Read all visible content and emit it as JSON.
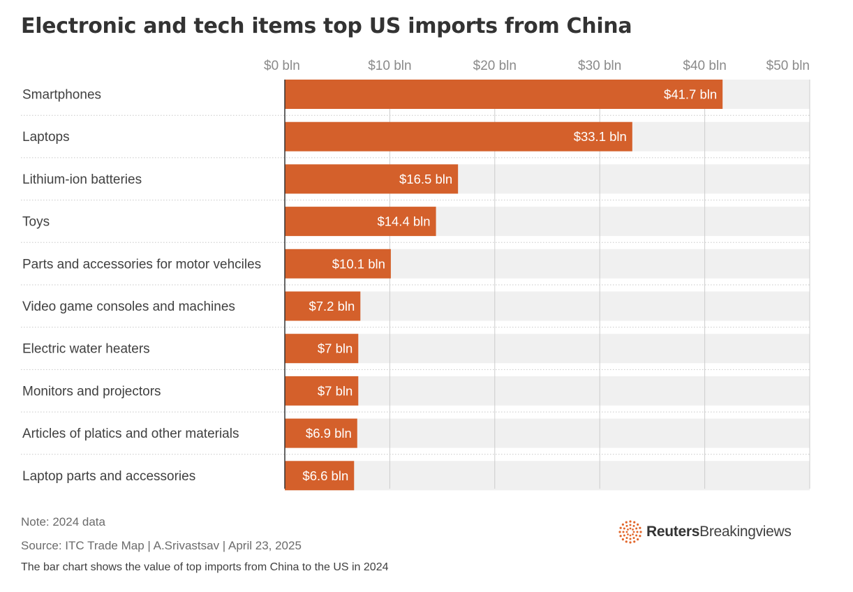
{
  "title": "Electronic and tech items top US imports from China",
  "footer": {
    "note": "Note: 2024 data",
    "source": "Source: ITC Trade Map | A.Srivastsav | April 23, 2025",
    "description": "The bar chart shows the value of top imports from China to the US in 2024"
  },
  "logo": {
    "brand": "Reuters",
    "product": "Breakingviews",
    "icon": "reuters-dot-ring-icon"
  },
  "colors": {
    "bar": "#d4602b",
    "track": "#f0f0f0",
    "grid": "#cccccc",
    "label_text": "#ffffff"
  },
  "chart_data": {
    "type": "bar",
    "orientation": "horizontal",
    "title": "Electronic and tech items top US imports from China",
    "categories": [
      "Smartphones",
      "Laptops",
      "Lithium-ion batteries",
      "Toys",
      "Parts and accessories for motor vehciles",
      "Video game consoles and machines",
      "Electric water heaters",
      "Monitors and projectors",
      "Articles of platics and other materials",
      "Laptop parts and accessories"
    ],
    "values": [
      41.7,
      33.1,
      16.5,
      14.4,
      10.1,
      7.2,
      7,
      7,
      6.9,
      6.6
    ],
    "value_labels": [
      "$41.7 bln",
      "$33.1 bln",
      "$16.5 bln",
      "$14.4 bln",
      "$10.1 bln",
      "$7.2 bln",
      "$7 bln",
      "$7 bln",
      "$6.9 bln",
      "$6.6 bln"
    ],
    "xlim": [
      0,
      50
    ],
    "xticks": [
      0,
      10,
      20,
      30,
      40,
      50
    ],
    "xtick_labels": [
      "$0 bln",
      "$10 bln",
      "$20 bln",
      "$30 bln",
      "$40 bln",
      "$50 bln"
    ],
    "xlabel": "",
    "ylabel": "",
    "grid": true,
    "axis_position": "top"
  }
}
